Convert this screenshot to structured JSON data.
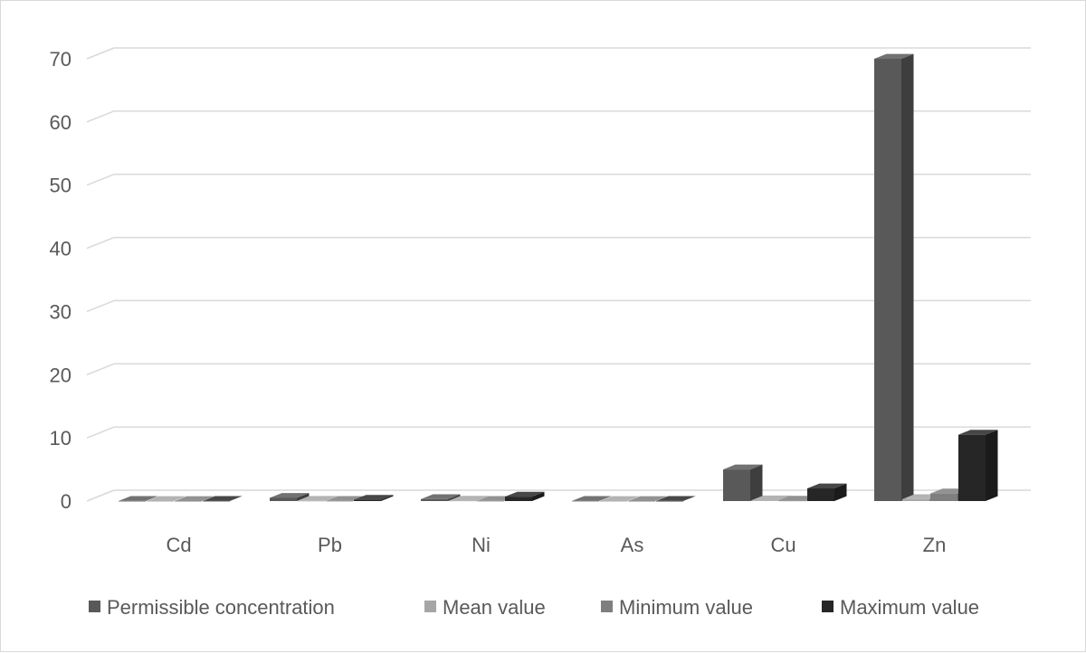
{
  "chart_data": {
    "type": "bar",
    "style": "3d-clustered-column",
    "title": "",
    "xlabel": "",
    "ylabel": "",
    "ylim": [
      0,
      70
    ],
    "yticks": [
      0,
      10,
      20,
      30,
      40,
      50,
      60,
      70
    ],
    "grid": true,
    "legend_position": "bottom",
    "categories": [
      "Cd",
      "Pb",
      "Ni",
      "As",
      "Cu",
      "Zn"
    ],
    "series": [
      {
        "name": "Permissible concentration",
        "color": "#595959",
        "values": [
          0.01,
          0.5,
          0.3,
          0.02,
          5.0,
          70.0
        ]
      },
      {
        "name": "Mean value",
        "color": "#a6a6a6",
        "values": [
          0.005,
          0.03,
          0.05,
          0.005,
          0.1,
          0.3
        ]
      },
      {
        "name": "Minimum value",
        "color": "#7f7f7f",
        "values": [
          0.002,
          0.02,
          0.02,
          0.002,
          0.05,
          1.2
        ]
      },
      {
        "name": "Maximum value",
        "color": "#262626",
        "values": [
          0.02,
          0.2,
          0.7,
          0.01,
          2.0,
          10.5
        ]
      }
    ]
  }
}
